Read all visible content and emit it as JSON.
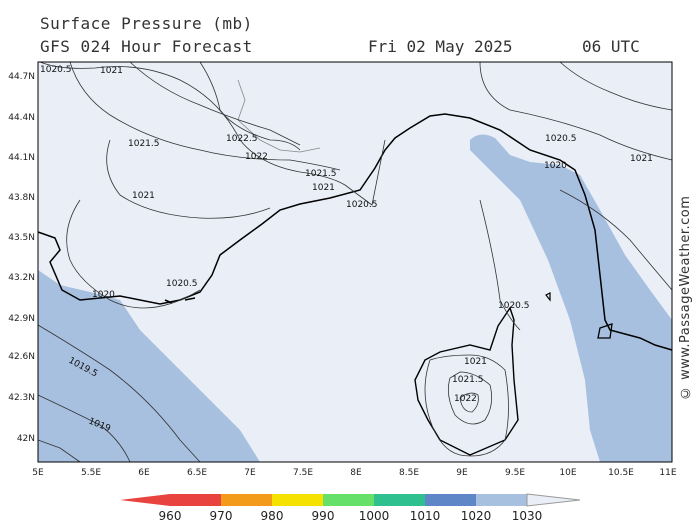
{
  "header": {
    "title": "Surface Pressure (mb)",
    "subtitle": "GFS 024 Hour Forecast",
    "date": "Fri 02 May 2025",
    "time": "06 UTC"
  },
  "map": {
    "lat_labels": [
      "44.7N",
      "44.4N",
      "44.1N",
      "43.8N",
      "43.5N",
      "43.2N",
      "42.9N",
      "42.6N",
      "42.3N",
      "42N"
    ],
    "lon_labels": [
      "5E",
      "5.5E",
      "6E",
      "6.5E",
      "7E",
      "7.5E",
      "8E",
      "8.5E",
      "9E",
      "9.5E",
      "10E",
      "10.5E",
      "11E"
    ],
    "contour_labels": [
      "1020.5",
      "1021",
      "1021.5",
      "1022.5",
      "1022",
      "1021.5",
      "1021",
      "1020.5",
      "1020.5",
      "1020",
      "1021",
      "1021",
      "1020.5",
      "1020",
      "1020.5",
      "1021",
      "1021.5",
      "1022",
      "1019.5",
      "1019"
    ],
    "colors": {
      "water": "#e9eef7",
      "band1020": "#a7c0e0",
      "land_line": "#000000",
      "contour": "#333333"
    }
  },
  "legend": {
    "values": [
      "960",
      "970",
      "980",
      "990",
      "1000",
      "1010",
      "1020",
      "1030"
    ],
    "colors": [
      "#e8433f",
      "#f39a1b",
      "#f6e200",
      "#67e06a",
      "#2ec08f",
      "#5f87c8",
      "#a7c0e0",
      "#e9eef7"
    ]
  },
  "copyright": "© www.PassageWeather.com"
}
